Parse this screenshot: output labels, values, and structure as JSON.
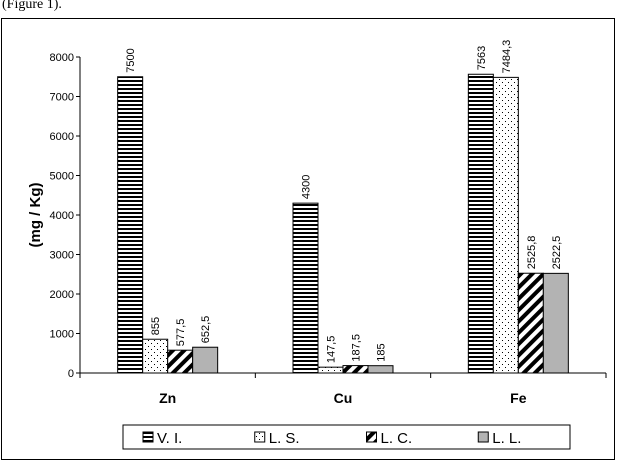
{
  "header_fragment": "(Figure 1).",
  "chart_data": {
    "type": "bar",
    "categories": [
      "Zn",
      "Cu",
      "Fe"
    ],
    "series": [
      {
        "name": "V. I.",
        "values": [
          7500,
          4300,
          7563
        ],
        "labels": [
          "7500",
          "4300",
          "7563"
        ],
        "pattern": "horizontal-stripes"
      },
      {
        "name": "L. S.",
        "values": [
          855,
          147.5,
          7484.3
        ],
        "labels": [
          "855",
          "147,5",
          "7484,3"
        ],
        "pattern": "dots"
      },
      {
        "name": "L. C.",
        "values": [
          577.5,
          187.5,
          2525.8
        ],
        "labels": [
          "577,5",
          "187,5",
          "2525,8"
        ],
        "pattern": "diagonal-stripes"
      },
      {
        "name": "L. L.",
        "values": [
          652.5,
          185,
          2522.5
        ],
        "labels": [
          "652,5",
          "185",
          "2522,5"
        ],
        "pattern": "solid-gray"
      }
    ],
    "title": "",
    "xlabel": "",
    "ylabel": "(mg / Kg)",
    "ylim": [
      0,
      8000
    ],
    "yticks": [
      0,
      1000,
      2000,
      3000,
      4000,
      5000,
      6000,
      7000,
      8000
    ],
    "grid": false,
    "legend_position": "bottom",
    "colors": {
      "gray": "#b3b3b3",
      "black": "#000000"
    }
  }
}
